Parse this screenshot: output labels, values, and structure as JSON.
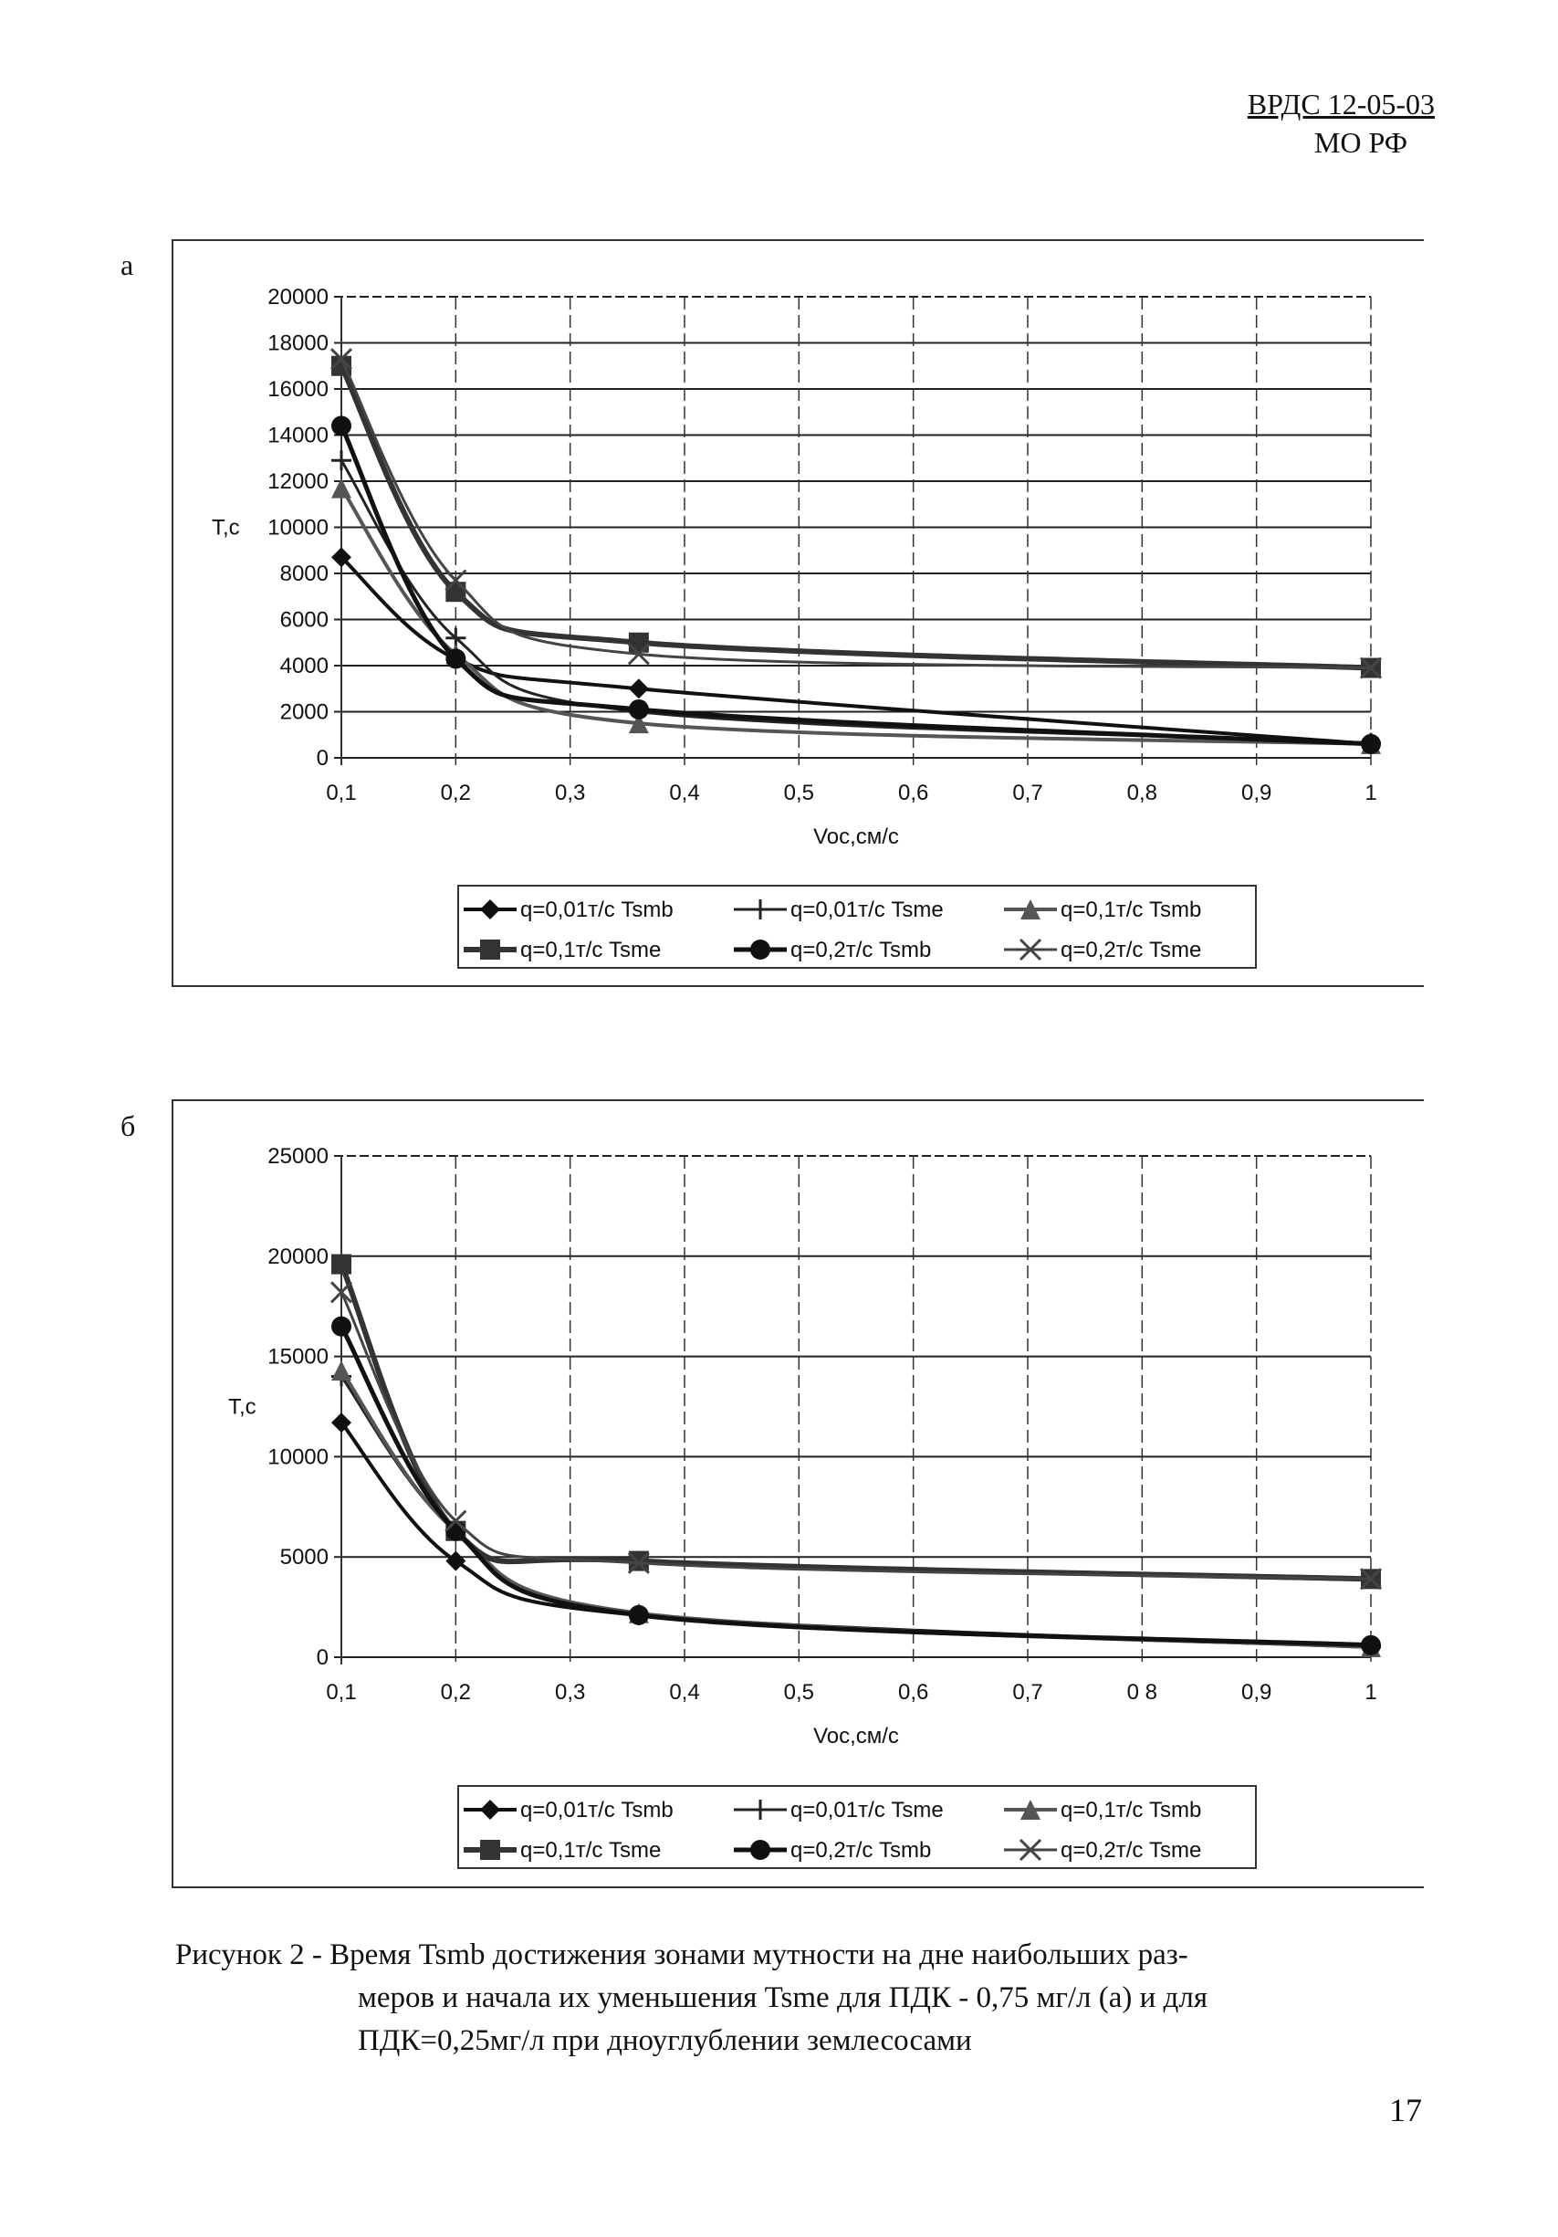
{
  "header": {
    "code": "ВРДС 12-05-03",
    "org": "МО РФ"
  },
  "panels": {
    "a": "а",
    "b": "б"
  },
  "caption": {
    "line1": "Рисунок 2 - Время Tsmb достижения зонами мутности на дне наибольших раз-",
    "line2": "меров и начала их уменьшения Tsme для ПДК - 0,75 мг/л (а) и для",
    "line3": "ПДК=0,25мг/л при дноуглублении землесосами"
  },
  "page_number": "17",
  "chart_data": [
    {
      "type": "line",
      "title": "",
      "xlabel": "Voc,см/с",
      "ylabel": "T,c",
      "xlim": [
        0.1,
        1
      ],
      "ylim": [
        0,
        20000
      ],
      "xticks": [
        "0,1",
        "0,2",
        "0,3",
        "0,4",
        "0,5",
        "0,6",
        "0,7",
        "0,8",
        "0,9",
        "1"
      ],
      "yticks": [
        "0",
        "2000",
        "4000",
        "6000",
        "8000",
        "10000",
        "12000",
        "14000",
        "16000",
        "18000",
        "20000"
      ],
      "grid": true,
      "legend_position": "bottom",
      "x": [
        0.1,
        0.2,
        0.36,
        1
      ],
      "series": [
        {
          "name": "q=0,01т/с Tsmb",
          "marker": "diamond",
          "values": [
            8700,
            4300,
            3000,
            600
          ]
        },
        {
          "name": "q=0,01т/с Tsme",
          "marker": "plus",
          "values": [
            12900,
            5200,
            2000,
            650
          ]
        },
        {
          "name": "q=0,1т/с Tsmb",
          "marker": "triangle",
          "values": [
            11700,
            4500,
            1500,
            600
          ]
        },
        {
          "name": "q=0,1т/с Tsme",
          "marker": "square",
          "values": [
            17000,
            7200,
            5000,
            3900
          ]
        },
        {
          "name": "q=0,2т/с Tsmb",
          "marker": "circle",
          "values": [
            14400,
            4300,
            2100,
            600
          ]
        },
        {
          "name": "q=0,2т/с Tsme",
          "marker": "x",
          "values": [
            17300,
            7700,
            4500,
            3900
          ]
        }
      ]
    },
    {
      "type": "line",
      "title": "",
      "xlabel": "Voc,см/с",
      "ylabel": "T,c",
      "xlim": [
        0.1,
        1
      ],
      "ylim": [
        0,
        25000
      ],
      "xticks": [
        "0,1",
        "0,2",
        "0,3",
        "0,4",
        "0,5",
        "0,6",
        "0,7",
        "0 8",
        "0,9",
        "1"
      ],
      "yticks": [
        "0",
        "5000",
        "10000",
        "15000",
        "20000",
        "25000"
      ],
      "grid": true,
      "legend_position": "bottom",
      "x": [
        0.1,
        0.2,
        0.36,
        1
      ],
      "series": [
        {
          "name": "q=0,01т/с Tsmb",
          "marker": "diamond",
          "values": [
            11700,
            4800,
            2100,
            500
          ]
        },
        {
          "name": "q=0,01т/с Tsme",
          "marker": "plus",
          "values": [
            14000,
            6300,
            2100,
            500
          ]
        },
        {
          "name": "q=0,1т/с Tsmb",
          "marker": "triangle",
          "values": [
            14300,
            6300,
            2200,
            500
          ]
        },
        {
          "name": "q=0,1т/с Tsme",
          "marker": "square",
          "values": [
            19600,
            6300,
            4800,
            3900
          ]
        },
        {
          "name": "q=0,2т/с Tsmb",
          "marker": "circle",
          "values": [
            16500,
            6300,
            2100,
            600
          ]
        },
        {
          "name": "q=0,2т/с Tsme",
          "marker": "x",
          "values": [
            18200,
            6800,
            4700,
            3900
          ]
        }
      ]
    }
  ]
}
